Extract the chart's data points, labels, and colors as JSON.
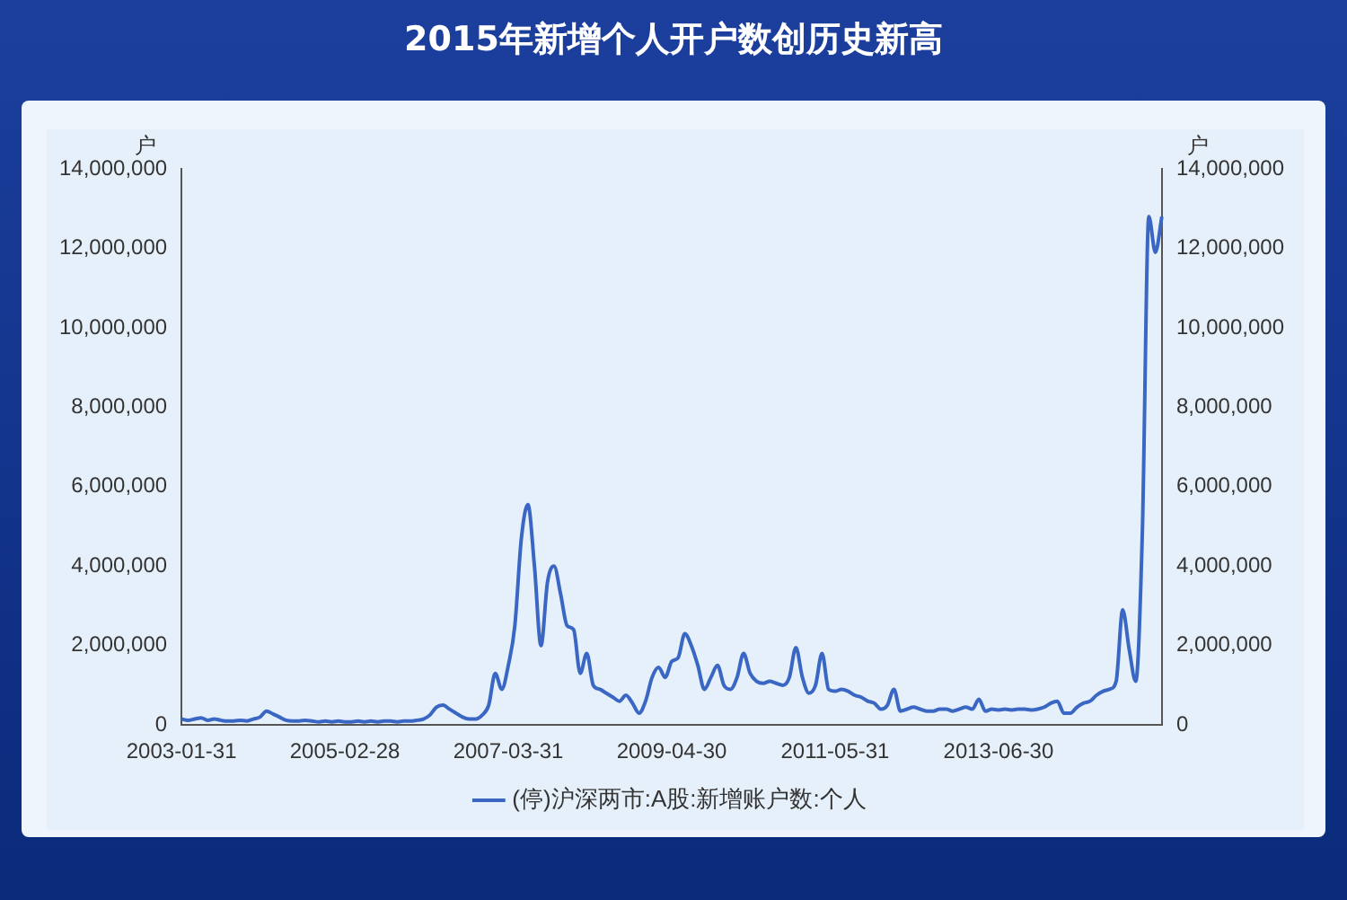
{
  "chart_data": {
    "type": "line",
    "title": "2015年新增个人开户数创历史新高",
    "ylabel": "户",
    "y2label": "户",
    "categories": [
      "2003-01-31",
      null,
      null,
      null,
      null,
      null,
      null,
      null,
      null,
      null,
      null,
      null,
      null,
      null,
      null,
      null,
      null,
      null,
      null,
      null,
      null,
      null,
      null,
      null,
      null,
      "2005-02-28",
      null,
      null,
      null,
      null,
      null,
      null,
      null,
      null,
      null,
      null,
      null,
      null,
      null,
      null,
      null,
      null,
      null,
      null,
      null,
      null,
      null,
      null,
      null,
      null,
      "2007-03-31",
      null,
      null,
      null,
      null,
      null,
      null,
      null,
      null,
      null,
      null,
      null,
      null,
      null,
      null,
      null,
      null,
      null,
      null,
      null,
      null,
      null,
      null,
      null,
      null,
      "2009-04-30",
      null,
      null,
      null,
      null,
      null,
      null,
      null,
      null,
      null,
      null,
      null,
      null,
      null,
      null,
      null,
      null,
      null,
      null,
      null,
      null,
      null,
      null,
      null,
      null,
      "2011-05-31",
      null,
      null,
      null,
      null,
      null,
      null,
      null,
      null,
      null,
      null,
      null,
      null,
      null,
      null,
      null,
      null,
      null,
      null,
      null,
      null,
      null,
      null,
      null,
      null,
      "2013-06-30",
      null,
      null,
      null,
      null,
      null,
      null,
      null,
      null,
      null,
      null,
      null,
      null,
      null,
      null,
      null,
      null,
      null,
      null,
      null,
      null,
      null,
      null,
      null,
      null,
      null
    ],
    "series": [
      {
        "name": "(停)沪深两市:A股:新增账户数:个人",
        "color": "#3a66c4",
        "values": [
          150000,
          120000,
          150000,
          180000,
          120000,
          150000,
          120000,
          100000,
          100000,
          120000,
          100000,
          150000,
          200000,
          350000,
          280000,
          200000,
          120000,
          100000,
          100000,
          120000,
          100000,
          80000,
          100000,
          80000,
          100000,
          80000,
          80000,
          100000,
          80000,
          100000,
          80000,
          100000,
          100000,
          80000,
          100000,
          100000,
          120000,
          150000,
          250000,
          450000,
          500000,
          400000,
          300000,
          200000,
          150000,
          150000,
          250000,
          500000,
          1300000,
          900000,
          1500000,
          2500000,
          4700000,
          5550000,
          4000000,
          2000000,
          3600000,
          4000000,
          3300000,
          2500000,
          2400000,
          1300000,
          1800000,
          1000000,
          900000,
          800000,
          700000,
          600000,
          750000,
          550000,
          300000,
          600000,
          1200000,
          1450000,
          1200000,
          1600000,
          1700000,
          2300000,
          2000000,
          1500000,
          900000,
          1200000,
          1500000,
          1000000,
          900000,
          1200000,
          1800000,
          1300000,
          1100000,
          1050000,
          1100000,
          1050000,
          1000000,
          1200000,
          1950000,
          1200000,
          800000,
          1000000,
          1800000,
          900000,
          850000,
          900000,
          850000,
          750000,
          700000,
          600000,
          550000,
          400000,
          500000,
          900000,
          350000,
          400000,
          450000,
          400000,
          350000,
          350000,
          400000,
          400000,
          350000,
          400000,
          450000,
          400000,
          650000,
          350000,
          400000,
          380000,
          400000,
          380000,
          400000,
          400000,
          380000,
          400000,
          450000,
          550000,
          600000,
          300000,
          300000,
          450000,
          550000,
          600000,
          750000,
          850000,
          900000,
          1100000,
          2900000,
          1900000,
          1100000,
          4800000,
          12800000,
          11900000,
          12800000
        ]
      }
    ],
    "ylim": [
      0,
      14000000
    ],
    "yticks": [
      0,
      {
        "value": 2000000,
        "label": "2,000,000"
      },
      {
        "value": 4000000,
        "label": "4,000,000"
      },
      {
        "value": 6000000,
        "label": "6,000,000"
      },
      {
        "value": 8000000,
        "label": "8,000,000"
      },
      {
        "value": 10000000,
        "label": "10,000,000"
      },
      {
        "value": 12000000,
        "label": "12,000,000"
      },
      {
        "value": 14000000,
        "label": "14,000,000"
      }
    ],
    "y2lim": [
      0,
      14000000
    ],
    "y2ticks": [
      0,
      {
        "value": 2000000,
        "label": "2,000,000"
      },
      {
        "value": 4000000,
        "label": "4,000,000"
      },
      {
        "value": 6000000,
        "label": "6,000,000"
      },
      {
        "value": 8000000,
        "label": "8,000,000"
      },
      {
        "value": 10000000,
        "label": "10,000,000"
      },
      {
        "value": 12000000,
        "label": "12,000,000"
      },
      {
        "value": 14000000,
        "label": "14,000,000"
      }
    ],
    "grid": false,
    "legend": "bottom",
    "marker": "none",
    "line_style": "solid"
  }
}
